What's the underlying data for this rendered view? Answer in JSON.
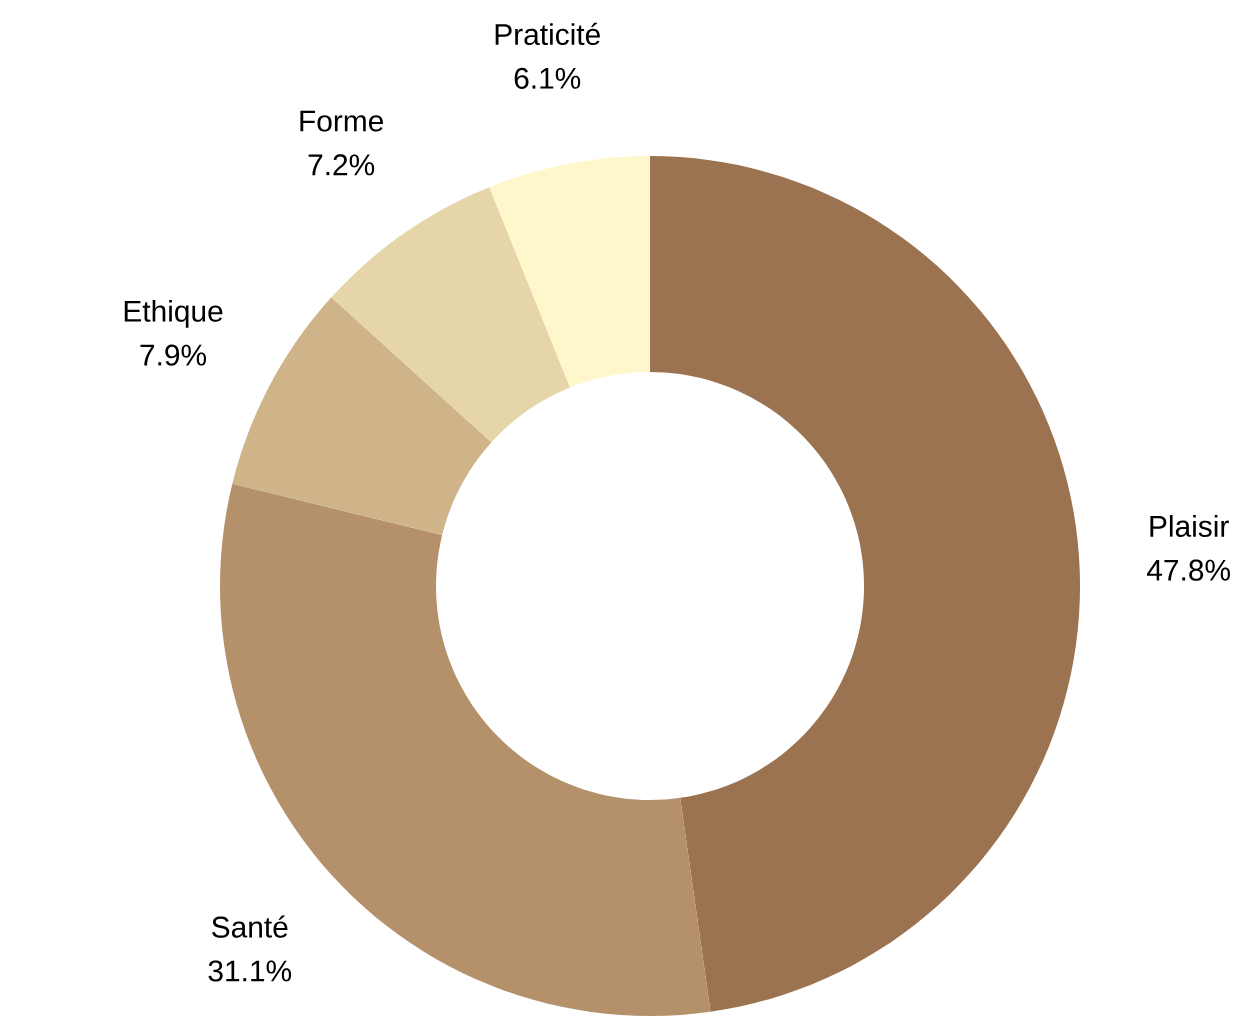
{
  "chart_data": {
    "type": "donut",
    "categories": [
      "Plaisir",
      "Santé",
      "Ethique",
      "Forme",
      "Praticité"
    ],
    "values": [
      47.8,
      31.1,
      7.9,
      7.2,
      6.1
    ],
    "value_labels": [
      "47.8%",
      "31.1%",
      "7.9%",
      "7.2%",
      "6.1%"
    ],
    "colors": [
      "#9c7350",
      "#b5916b",
      "#cfb48a",
      "#e6d5a8",
      "#fff7cc"
    ]
  }
}
